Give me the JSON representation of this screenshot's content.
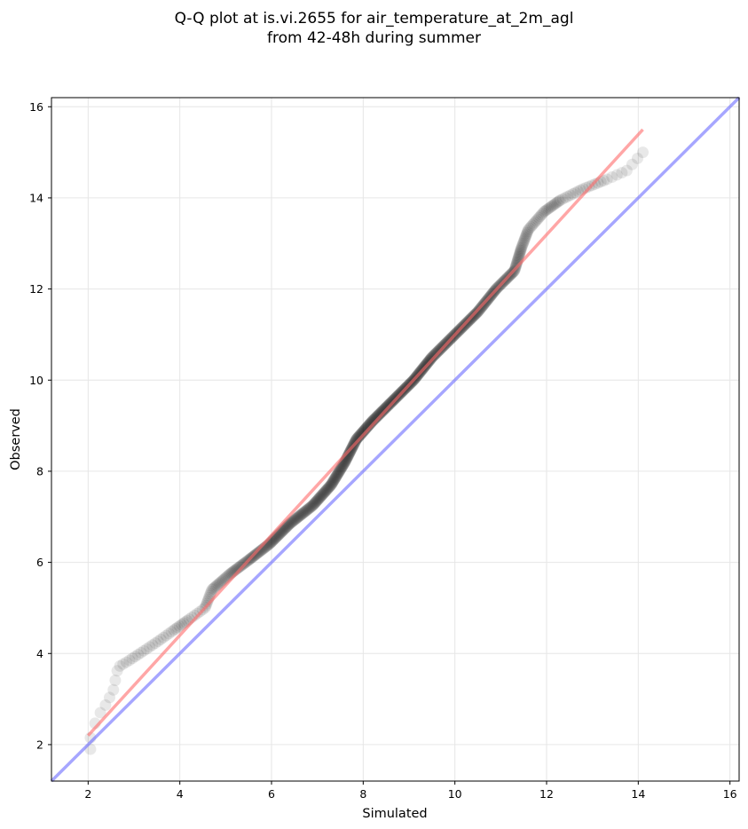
{
  "chart_data": {
    "type": "scatter",
    "title_lines": [
      "Q-Q plot at is.vi.2655 for air_temperature_at_2m_agl",
      "from 42-48h during summer"
    ],
    "xlabel": "Simulated",
    "ylabel": "Observed",
    "xlim": [
      1.2,
      16.2
    ],
    "ylim": [
      1.2,
      16.2
    ],
    "xticks": [
      2,
      4,
      6,
      8,
      10,
      12,
      14,
      16
    ],
    "yticks": [
      2,
      4,
      6,
      8,
      10,
      12,
      14,
      16
    ],
    "grid": true,
    "colors": {
      "points": "#000000",
      "fit_line": "#ff6b6b",
      "identity_line": "#6b6bff",
      "grid": "#e6e6e6"
    },
    "identity_line": {
      "x": [
        1.2,
        16.2
      ],
      "y": [
        1.2,
        16.2
      ]
    },
    "fit_line": {
      "x": [
        2.0,
        14.1
      ],
      "y": [
        2.2,
        15.5
      ]
    },
    "curve_knots": [
      [
        0.0,
        2.05,
        1.9
      ],
      [
        0.002,
        2.05,
        2.2
      ],
      [
        0.004,
        2.2,
        2.6
      ],
      [
        0.007,
        2.4,
        2.9
      ],
      [
        0.01,
        2.55,
        3.2
      ],
      [
        0.014,
        2.65,
        3.7
      ],
      [
        0.02,
        2.9,
        3.85
      ],
      [
        0.028,
        3.2,
        4.05
      ],
      [
        0.036,
        3.5,
        4.25
      ],
      [
        0.046,
        3.85,
        4.5
      ],
      [
        0.06,
        4.2,
        4.75
      ],
      [
        0.07,
        4.55,
        5.0
      ],
      [
        0.085,
        4.7,
        5.4
      ],
      [
        0.11,
        5.1,
        5.75
      ],
      [
        0.14,
        5.5,
        6.05
      ],
      [
        0.18,
        5.95,
        6.4
      ],
      [
        0.23,
        6.4,
        6.85
      ],
      [
        0.28,
        6.9,
        7.25
      ],
      [
        0.33,
        7.3,
        7.7
      ],
      [
        0.38,
        7.6,
        8.2
      ],
      [
        0.43,
        7.85,
        8.7
      ],
      [
        0.48,
        8.2,
        9.1
      ],
      [
        0.54,
        8.65,
        9.55
      ],
      [
        0.6,
        9.1,
        10.0
      ],
      [
        0.66,
        9.5,
        10.5
      ],
      [
        0.72,
        10.0,
        11.0
      ],
      [
        0.78,
        10.5,
        11.5
      ],
      [
        0.83,
        10.9,
        12.0
      ],
      [
        0.87,
        11.3,
        12.4
      ],
      [
        0.9,
        11.45,
        12.9
      ],
      [
        0.92,
        11.6,
        13.3
      ],
      [
        0.94,
        11.95,
        13.7
      ],
      [
        0.96,
        12.3,
        13.95
      ],
      [
        0.975,
        12.8,
        14.2
      ],
      [
        0.988,
        13.3,
        14.4
      ],
      [
        0.995,
        13.75,
        14.6
      ],
      [
        1.0,
        14.1,
        15.0
      ]
    ],
    "n_points": 600
  }
}
